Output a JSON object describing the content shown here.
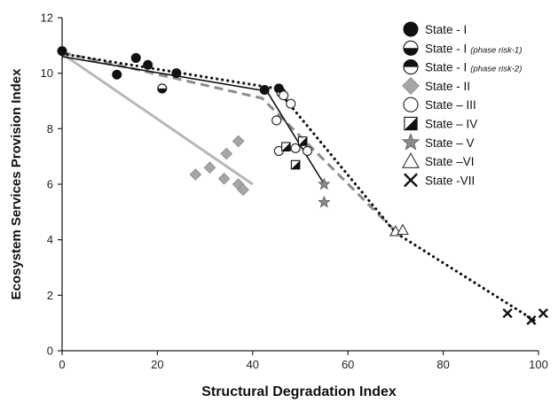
{
  "chart_data": {
    "type": "scatter",
    "title": "",
    "xlabel": "Structural Degradation Index",
    "ylabel": "Ecosystem Services Provision Index",
    "xlim": [
      0,
      100
    ],
    "ylim": [
      0,
      12
    ],
    "xticks": [
      "0",
      "20",
      "40",
      "60",
      "80",
      "100"
    ],
    "yticks": [
      "0",
      "2",
      "4",
      "6",
      "8",
      "10",
      "12"
    ],
    "grid": false,
    "legend_position": "top-right",
    "series": [
      {
        "name": "State - I",
        "marker": "filled-circle",
        "points": [
          [
            0,
            10.8
          ],
          [
            11.5,
            9.95
          ],
          [
            15.5,
            10.55
          ],
          [
            18,
            10.3
          ],
          [
            24,
            10.0
          ],
          [
            42.5,
            9.4
          ],
          [
            45.5,
            9.45
          ]
        ]
      },
      {
        "name": "State - I",
        "subtitle": "(phase risk-1)",
        "marker": "circle-bottom-half",
        "points": [
          [
            21,
            9.45
          ]
        ]
      },
      {
        "name": "State - I",
        "subtitle": "(phase risk-2)",
        "marker": "circle-top-half",
        "points": [
          [
            46,
            9.3
          ]
        ]
      },
      {
        "name": "State - II",
        "marker": "diamond",
        "points": [
          [
            28,
            6.35
          ],
          [
            31,
            6.6
          ],
          [
            34,
            6.2
          ],
          [
            34.5,
            7.1
          ],
          [
            37,
            7.55
          ],
          [
            37,
            6.0
          ],
          [
            38,
            5.8
          ]
        ]
      },
      {
        "name": "State – III",
        "marker": "open-circle",
        "points": [
          [
            45,
            8.3
          ],
          [
            45.5,
            7.2
          ],
          [
            46.5,
            9.2
          ],
          [
            48,
            8.9
          ],
          [
            49,
            7.3
          ],
          [
            51.5,
            7.2
          ]
        ]
      },
      {
        "name": "State – IV",
        "marker": "half-square",
        "points": [
          [
            47,
            7.35
          ],
          [
            49,
            6.7
          ],
          [
            50.5,
            7.55
          ]
        ]
      },
      {
        "name": "State – V",
        "marker": "star",
        "points": [
          [
            55,
            6.0
          ],
          [
            55,
            5.35
          ]
        ]
      },
      {
        "name": "State –VI",
        "marker": "open-triangle",
        "points": [
          [
            70,
            4.3
          ],
          [
            71.5,
            4.35
          ]
        ]
      },
      {
        "name": "State -VII",
        "marker": "x",
        "points": [
          [
            93.5,
            1.35
          ],
          [
            98.5,
            1.1
          ],
          [
            101,
            1.35
          ]
        ]
      }
    ],
    "fit_lines": [
      {
        "style": "solid-gray",
        "points": [
          [
            0,
            10.7
          ],
          [
            40,
            6.0
          ]
        ]
      },
      {
        "style": "dashed-gray",
        "points": [
          [
            0,
            10.75
          ],
          [
            42,
            9.1
          ],
          [
            70,
            4.3
          ]
        ]
      },
      {
        "style": "solid-black",
        "points": [
          [
            0,
            10.6
          ],
          [
            43,
            9.35
          ],
          [
            55,
            6.0
          ]
        ]
      },
      {
        "style": "dotted-black",
        "points": [
          [
            0,
            10.7
          ],
          [
            45,
            9.45
          ],
          [
            70,
            4.25
          ],
          [
            100,
            1.0
          ]
        ]
      }
    ]
  }
}
